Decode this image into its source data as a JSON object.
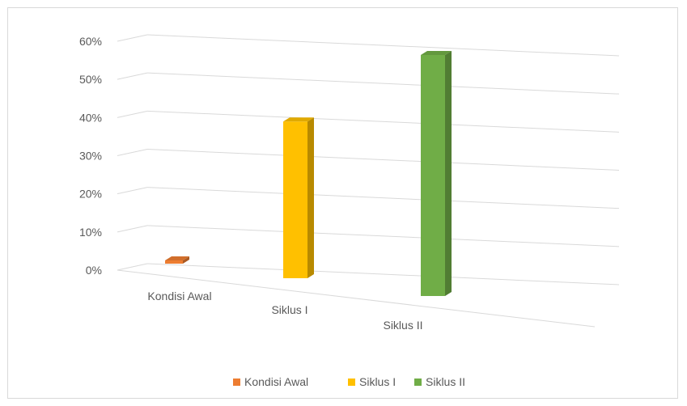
{
  "chart_data": {
    "type": "bar",
    "style": "3d-perspective",
    "categories": [
      "Kondisi Awal",
      "Siklus I",
      "Siklus II"
    ],
    "values": [
      0.0,
      0.39,
      0.6
    ],
    "colors": [
      "#ed7d31",
      "#ffc000",
      "#70ad47"
    ],
    "y_ticks": [
      "0%",
      "10%",
      "20%",
      "30%",
      "40%",
      "50%",
      "60%"
    ],
    "ylim": [
      0,
      0.6
    ],
    "grid": true,
    "legend": {
      "position": "bottom",
      "entries": [
        "Kondisi Awal",
        "Siklus I",
        "Siklus II"
      ]
    },
    "title": "",
    "xlabel": "",
    "ylabel": ""
  }
}
